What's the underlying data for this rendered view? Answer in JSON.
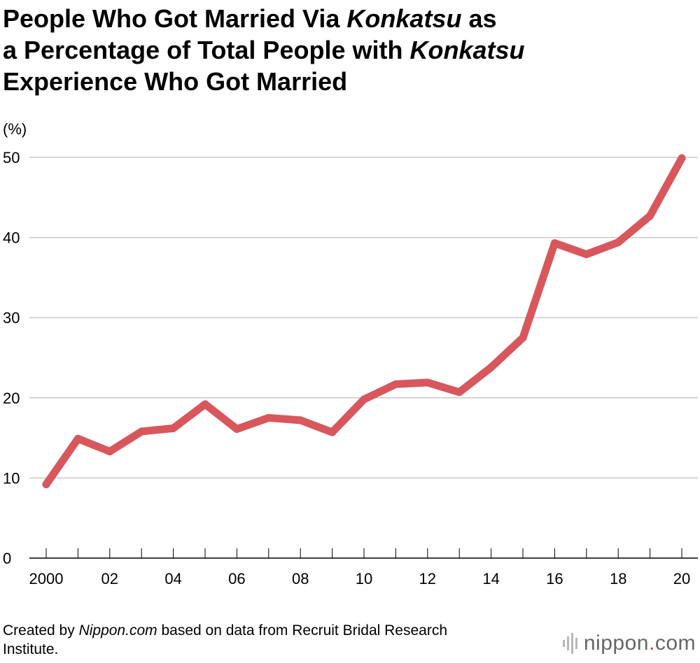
{
  "title": {
    "p1": "People Who Got Married Via ",
    "p2": "Konkatsu",
    "p3": " as",
    "p4": "a Percentage of Total People with ",
    "p5": "Konkatsu",
    "p6": "Experience Who Got Married"
  },
  "source": {
    "s1": "Created by ",
    "s2": "Nippon.com",
    "s3": " based on data from Recruit Bridal Research Institute."
  },
  "logo": {
    "name": "nippon",
    "dot": ".",
    "tld": "com"
  },
  "colors": {
    "line": "#d8575d",
    "grid": "#c8c8c8",
    "axis": "#000000",
    "logo_dot": "#d8393e"
  },
  "chart_data": {
    "type": "line",
    "title": "People Who Got Married Via Konkatsu as a Percentage of Total People with Konkatsu Experience Who Got Married",
    "xlabel": "",
    "ylabel": "(%)",
    "ylim": [
      0,
      50
    ],
    "yticks": [
      0,
      10,
      20,
      30,
      40,
      50
    ],
    "xlim": [
      2000,
      2020
    ],
    "xtick_values": [
      2000,
      2002,
      2004,
      2006,
      2008,
      2010,
      2012,
      2014,
      2016,
      2018,
      2020
    ],
    "xtick_labels": [
      "2000",
      "02",
      "04",
      "06",
      "08",
      "10",
      "12",
      "14",
      "16",
      "18",
      "20"
    ],
    "grid": true,
    "x": [
      2000,
      2001,
      2002,
      2003,
      2004,
      2005,
      2006,
      2007,
      2008,
      2009,
      2010,
      2011,
      2012,
      2013,
      2014,
      2015,
      2016,
      2017,
      2018,
      2019,
      2020
    ],
    "series": [
      {
        "values": [
          9.2,
          14.9,
          13.3,
          15.8,
          16.2,
          19.2,
          16.1,
          17.5,
          17.2,
          15.7,
          19.8,
          21.7,
          21.9,
          20.7,
          23.8,
          27.5,
          39.3,
          37.9,
          39.4,
          42.7,
          49.9
        ]
      }
    ]
  }
}
